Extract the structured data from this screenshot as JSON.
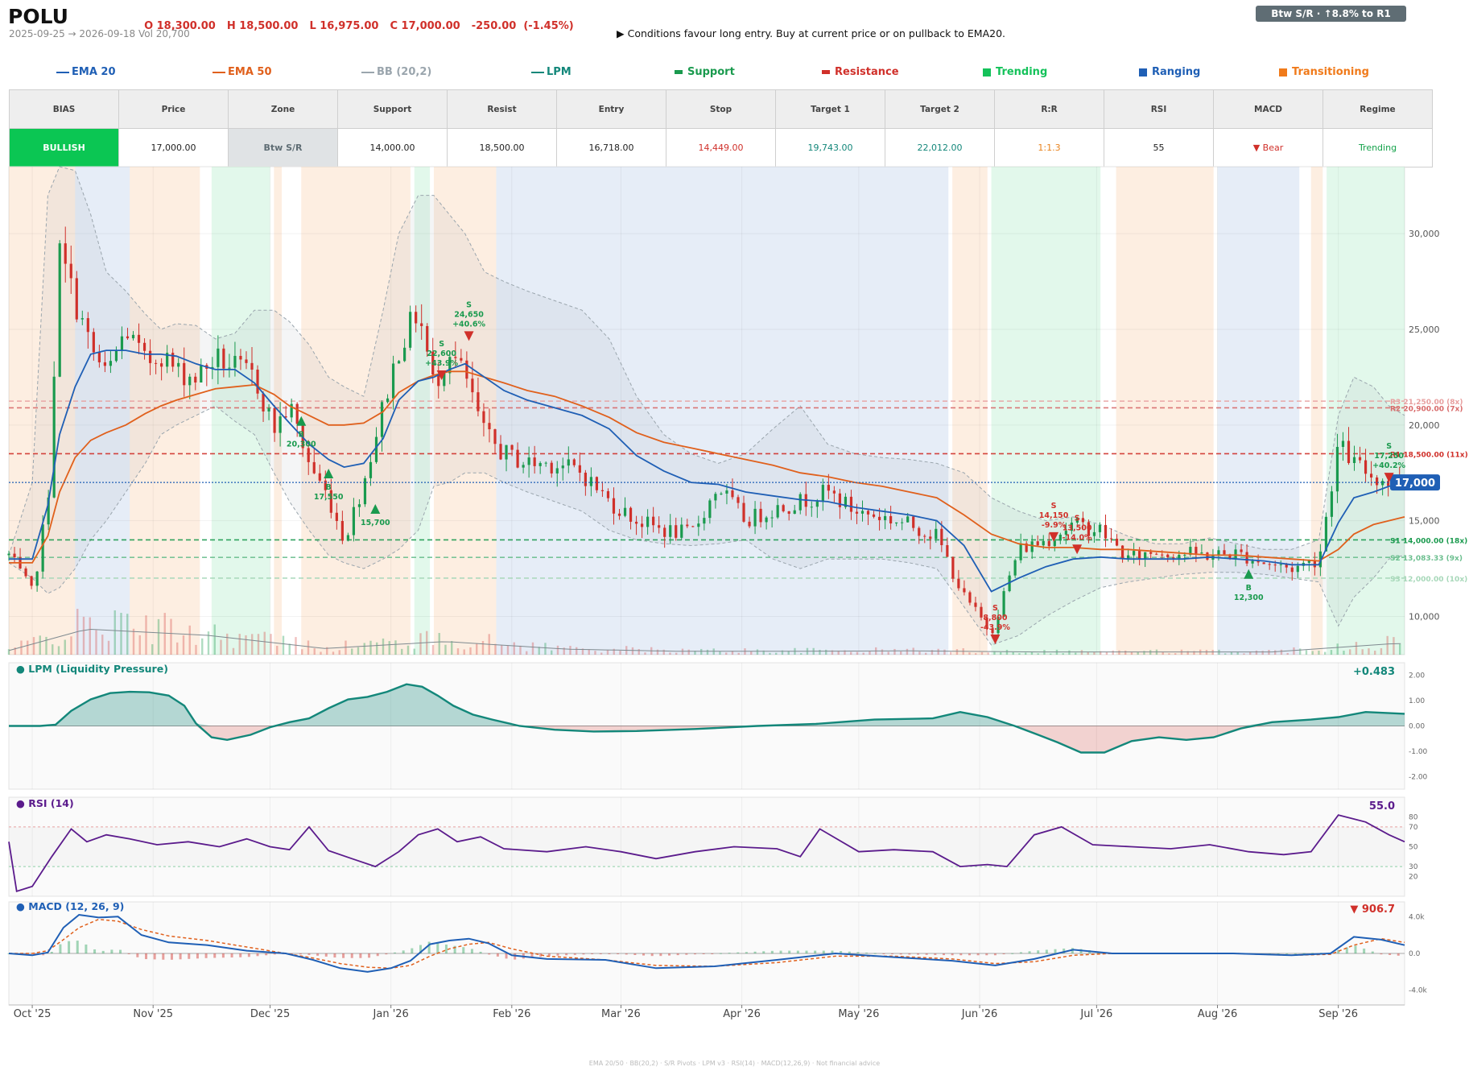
{
  "header": {
    "ticker": "POLU",
    "ohlc": [
      "O 18,300.00",
      "H 18,500.00",
      "L 16,975.00",
      "C 17,000.00",
      "-250.00  (-1.45%)"
    ],
    "date_range": "2025-09-25 → 2026-09-18   Vol 20,700",
    "advice": "▶  Conditions favour long entry. Buy at current price or on pullback to EMA20.",
    "badge": "Btw S/R  ·  ↑8.8% to R1"
  },
  "legend": [
    {
      "label": "EMA 20",
      "color": "#1f5fb5",
      "kind": "line"
    },
    {
      "label": "EMA 50",
      "color": "#e0601c",
      "kind": "line"
    },
    {
      "label": "BB (20,2)",
      "color": "#9aa5ad",
      "kind": "line"
    },
    {
      "label": "LPM",
      "color": "#13877a",
      "kind": "line"
    },
    {
      "label": "Support",
      "color": "#1a9a4e",
      "kind": "bar"
    },
    {
      "label": "Resistance",
      "color": "#d0302a",
      "kind": "bar"
    },
    {
      "label": "Trending",
      "color": "#14c25a",
      "kind": "box"
    },
    {
      "label": "Ranging",
      "color": "#1f5fb5",
      "kind": "box"
    },
    {
      "label": "Transitioning",
      "color": "#f07a1a",
      "kind": "box"
    }
  ],
  "summary": {
    "headers": [
      "BIAS",
      "Price",
      "Zone",
      "Support",
      "Resist",
      "Entry",
      "Stop",
      "Target 1",
      "Target 2",
      "R:R",
      "RSI",
      "MACD",
      "Regime"
    ],
    "values": [
      "BULLISH",
      "17,000.00",
      "Btw S/R",
      "14,000.00",
      "18,500.00",
      "16,718.00",
      "14,449.00",
      "19,743.00",
      "22,012.00",
      "1:1.3",
      "55",
      "▼ Bear",
      "Trending"
    ],
    "value_colors": [
      "#ffffff",
      "#222222",
      "#5f6d74",
      "#222222",
      "#222222",
      "#222222",
      "#d0302a",
      "#13877a",
      "#13877a",
      "#e8821c",
      "#222222",
      "#d0302a",
      "#14a24a"
    ]
  },
  "panels": {
    "lpm": {
      "title": "● LPM (Liquidity Pressure)",
      "value": "+0.483"
    },
    "rsi": {
      "title": "● RSI (14)",
      "value": "55.0"
    },
    "macd": {
      "title": "● MACD (12, 26, 9)",
      "value": "▼ 906.7"
    }
  },
  "footer": "EMA 20/50  ·  BB(20,2)  ·  S/R Pivots  ·  LPM v3  ·  RSI(14)  ·  MACD(12,26,9)  ·  Not financial advice",
  "chart_data": {
    "type": "candlestick",
    "x_range": [
      "2025-09-25",
      "2026-09-18"
    ],
    "x_tick_labels": [
      "Oct '25",
      "Nov '25",
      "Dec '25",
      "Jan '26",
      "Feb '26",
      "Mar '26",
      "Apr '26",
      "May '26",
      "Jun '26",
      "Jul '26",
      "Aug '26",
      "Sep '26"
    ],
    "price_axis": {
      "ylim": [
        8000,
        33500
      ],
      "ticks": [
        "30,000",
        "25,000",
        "20,000",
        "15,000",
        "10,000"
      ]
    },
    "current_price": {
      "value": 17000,
      "label": "17,000"
    },
    "levels": [
      {
        "label": "R3 21,250.00 (8x)",
        "value": 21250,
        "color": "#e8a0a0"
      },
      {
        "label": "R2 20,900.00 (7x)",
        "value": 20900,
        "color": "#d86a6a"
      },
      {
        "label": "R1 18,500.00 (11x)",
        "value": 18500,
        "color": "#d0302a"
      },
      {
        "label": "S1 14,000.00 (18x)",
        "value": 14000,
        "color": "#1a9a4e"
      },
      {
        "label": "S2 13,083.33 (9x)",
        "value": 13083,
        "color": "#6cbf8f"
      },
      {
        "label": "S3 12,000.00 (10x)",
        "value": 12000,
        "color": "#a7d8b9"
      }
    ],
    "regimes": [
      {
        "start": "2025-09-25",
        "end": "2025-10-12",
        "type": "Transitioning"
      },
      {
        "start": "2025-10-12",
        "end": "2025-10-26",
        "type": "Ranging"
      },
      {
        "start": "2025-10-26",
        "end": "2025-11-13",
        "type": "Transitioning"
      },
      {
        "start": "2025-11-16",
        "end": "2025-12-01",
        "type": "Trending"
      },
      {
        "start": "2025-12-02",
        "end": "2025-12-04",
        "type": "Transitioning"
      },
      {
        "start": "2025-12-09",
        "end": "2026-01-06",
        "type": "Transitioning"
      },
      {
        "start": "2026-01-07",
        "end": "2026-01-11",
        "type": "Trending"
      },
      {
        "start": "2026-01-12",
        "end": "2026-01-28",
        "type": "Transitioning"
      },
      {
        "start": "2026-01-28",
        "end": "2026-05-24",
        "type": "Ranging"
      },
      {
        "start": "2026-05-25",
        "end": "2026-06-03",
        "type": "Transitioning"
      },
      {
        "start": "2026-06-04",
        "end": "2026-07-02",
        "type": "Trending"
      },
      {
        "start": "2026-07-06",
        "end": "2026-07-31",
        "type": "Transitioning"
      },
      {
        "start": "2026-08-01",
        "end": "2026-08-22",
        "type": "Ranging"
      },
      {
        "start": "2026-08-25",
        "end": "2026-08-28",
        "type": "Transitioning"
      },
      {
        "start": "2026-08-29",
        "end": "2026-09-18",
        "type": "Trending"
      }
    ],
    "price": {
      "dates": [
        "2025-09-25",
        "2025-10-01",
        "2025-10-05",
        "2025-10-08",
        "2025-10-12",
        "2025-10-16",
        "2025-10-20",
        "2025-10-25",
        "2025-10-30",
        "2025-11-03",
        "2025-11-07",
        "2025-11-12",
        "2025-11-17",
        "2025-11-22",
        "2025-11-27",
        "2025-12-02",
        "2025-12-06",
        "2025-12-11",
        "2025-12-16",
        "2025-12-20",
        "2025-12-25",
        "2025-12-30",
        "2026-01-03",
        "2026-01-08",
        "2026-01-12",
        "2026-01-16",
        "2026-01-20",
        "2026-01-25",
        "2026-01-30",
        "2026-02-05",
        "2026-02-12",
        "2026-02-19",
        "2026-02-26",
        "2026-03-05",
        "2026-03-12",
        "2026-03-19",
        "2026-03-26",
        "2026-04-02",
        "2026-04-09",
        "2026-04-16",
        "2026-04-23",
        "2026-04-30",
        "2026-05-07",
        "2026-05-14",
        "2026-05-21",
        "2026-05-28",
        "2026-06-04",
        "2026-06-11",
        "2026-06-18",
        "2026-06-25",
        "2026-07-02",
        "2026-07-09",
        "2026-07-16",
        "2026-07-23",
        "2026-07-30",
        "2026-08-06",
        "2026-08-13",
        "2026-08-20",
        "2026-08-27",
        "2026-09-01",
        "2026-09-05",
        "2026-09-10",
        "2026-09-14",
        "2026-09-18"
      ],
      "close": [
        13200,
        11200,
        16000,
        29000,
        26500,
        24000,
        22500,
        25000,
        23200,
        23800,
        22800,
        22500,
        23500,
        23000,
        22500,
        19800,
        21000,
        18000,
        16200,
        14000,
        17000,
        21000,
        24000,
        26000,
        22000,
        24000,
        22500,
        19500,
        18500,
        18000,
        18000,
        17500,
        16000,
        15000,
        14500,
        14300,
        16800,
        15000,
        15600,
        16000,
        16500,
        15500,
        15200,
        14800,
        14200,
        11000,
        9200,
        13500,
        14000,
        14800,
        14500,
        13000,
        13400,
        13300,
        13200,
        13300,
        12800,
        12500,
        13000,
        19000,
        18000,
        17300,
        17000,
        17000
      ],
      "ema20": [
        13000,
        13000,
        15800,
        19500,
        22000,
        23700,
        23900,
        23900,
        23700,
        23700,
        23600,
        23200,
        22900,
        22900,
        22200,
        21000,
        20100,
        19000,
        18200,
        17800,
        18000,
        19300,
        21300,
        22300,
        22500,
        22900,
        23200,
        22500,
        21800,
        21300,
        20900,
        20500,
        19800,
        18400,
        17600,
        17000,
        16900,
        16500,
        16300,
        16100,
        16000,
        15700,
        15500,
        15300,
        15000,
        13700,
        11300,
        12000,
        12600,
        13000,
        13100,
        13000,
        13000,
        13000,
        13100,
        13000,
        12900,
        12700,
        12700,
        14900,
        16200,
        16500,
        16800,
        16900
      ],
      "ema50": [
        12800,
        12800,
        14200,
        16500,
        18300,
        19200,
        19600,
        20000,
        20600,
        21000,
        21300,
        21600,
        21900,
        22000,
        22100,
        21600,
        21000,
        20500,
        20000,
        20000,
        20100,
        20700,
        21700,
        22300,
        22600,
        22800,
        22800,
        22500,
        22200,
        21800,
        21500,
        21000,
        20400,
        19600,
        19100,
        18800,
        18500,
        18200,
        17900,
        17500,
        17300,
        17000,
        16800,
        16500,
        16200,
        15300,
        14300,
        13800,
        13600,
        13600,
        13500,
        13500,
        13400,
        13300,
        13200,
        13200,
        13100,
        13000,
        12900,
        13500,
        14300,
        14800,
        15000,
        15200
      ],
      "bb_upper": [
        13200,
        17000,
        32000,
        33500,
        33300,
        31000,
        28000,
        27000,
        25800,
        25000,
        25300,
        25200,
        24500,
        24800,
        26000,
        26000,
        25400,
        24200,
        22500,
        22000,
        21500,
        26000,
        30000,
        32000,
        32000,
        31000,
        30000,
        28000,
        27500,
        27000,
        26500,
        26000,
        24500,
        21500,
        19500,
        18500,
        18000,
        18500,
        19800,
        21000,
        19000,
        18500,
        18300,
        18200,
        18000,
        17500,
        16200,
        15500,
        15000,
        15200,
        14800,
        14200,
        13800,
        13800,
        14100,
        13800,
        13500,
        13500,
        14000,
        20500,
        22500,
        22000,
        21000,
        20500
      ],
      "bb_lower": [
        12800,
        12000,
        11200,
        11500,
        12500,
        14000,
        15000,
        16500,
        18000,
        19500,
        20000,
        20500,
        21000,
        20200,
        19500,
        17500,
        16000,
        14500,
        13200,
        12800,
        12500,
        13000,
        13500,
        14500,
        16800,
        17000,
        17500,
        17500,
        17000,
        16500,
        16000,
        15500,
        14500,
        14000,
        13800,
        13700,
        13800,
        14000,
        13000,
        12500,
        13000,
        13000,
        13000,
        12800,
        12500,
        10500,
        8500,
        9000,
        10000,
        10800,
        11500,
        11800,
        12000,
        12200,
        12300,
        12300,
        12200,
        12000,
        11800,
        9500,
        11000,
        12000,
        13000,
        13200
      ]
    },
    "trade_markers": [
      {
        "kind": "B",
        "label": "B\n20,300",
        "date": "2025-12-09",
        "value": 20300
      },
      {
        "kind": "B",
        "label": "B\n17,550",
        "date": "2025-12-16",
        "value": 17550
      },
      {
        "kind": "B",
        "label": "15,700",
        "date": "2025-12-28",
        "value": 15700
      },
      {
        "kind": "S",
        "label": "S\n22,600\n+43.9%",
        "date": "2026-01-14",
        "value": 22600
      },
      {
        "kind": "S",
        "label": "S\n24,650\n+40.6%",
        "date": "2026-01-21",
        "value": 24650
      },
      {
        "kind": "S",
        "label": "S\n8,800\n-43.9%",
        "date": "2026-06-05",
        "value": 8800
      },
      {
        "kind": "S",
        "label": "S\n14,150\n-9.9%",
        "date": "2026-06-20",
        "value": 14150
      },
      {
        "kind": "S",
        "label": "S\n13,500\n-14.0%",
        "date": "2026-06-26",
        "value": 13500
      },
      {
        "kind": "B",
        "label": "B\n12,300",
        "date": "2026-08-09",
        "value": 12300
      },
      {
        "kind": "S",
        "label": "S\n17,250\n+40.2%",
        "date": "2026-09-14",
        "value": 17250
      }
    ],
    "volume": {
      "dates": [
        "2025-09-25",
        "2025-10-15",
        "2025-11-15",
        "2025-12-15",
        "2026-01-15",
        "2026-02-15",
        "2026-03-15",
        "2026-04-15",
        "2026-05-15",
        "2026-06-15",
        "2026-07-15",
        "2026-08-15",
        "2026-09-15"
      ],
      "avg": [
        600,
        3700,
        2800,
        900,
        1900,
        800,
        500,
        500,
        550,
        400,
        400,
        400,
        1600
      ]
    },
    "lpm": {
      "ylim": [
        -2.5,
        2.5
      ],
      "ticks": [
        "2.00",
        "1.00",
        "0.00",
        "-1.00",
        "-2.00"
      ],
      "dates": [
        "2025-09-25",
        "2025-10-03",
        "2025-10-07",
        "2025-10-11",
        "2025-10-16",
        "2025-10-21",
        "2025-10-26",
        "2025-10-31",
        "2025-11-05",
        "2025-11-09",
        "2025-11-12",
        "2025-11-16",
        "2025-11-20",
        "2025-11-26",
        "2025-12-01",
        "2025-12-06",
        "2025-12-11",
        "2025-12-16",
        "2025-12-21",
        "2025-12-26",
        "2025-12-31",
        "2026-01-05",
        "2026-01-09",
        "2026-01-13",
        "2026-01-17",
        "2026-01-22",
        "2026-01-27",
        "2026-02-03",
        "2026-02-12",
        "2026-02-22",
        "2026-03-05",
        "2026-03-20",
        "2026-04-05",
        "2026-04-20",
        "2026-05-05",
        "2026-05-20",
        "2026-05-27",
        "2026-06-03",
        "2026-06-10",
        "2026-06-16",
        "2026-06-21",
        "2026-06-27",
        "2026-07-03",
        "2026-07-10",
        "2026-07-17",
        "2026-07-24",
        "2026-07-31",
        "2026-08-07",
        "2026-08-15",
        "2026-08-25",
        "2026-09-01",
        "2026-09-08",
        "2026-09-18"
      ],
      "values": [
        0.0,
        0.0,
        0.05,
        0.6,
        1.05,
        1.3,
        1.35,
        1.33,
        1.2,
        0.8,
        0.1,
        -0.45,
        -0.55,
        -0.35,
        -0.05,
        0.15,
        0.3,
        0.7,
        1.05,
        1.15,
        1.35,
        1.65,
        1.55,
        1.2,
        0.8,
        0.45,
        0.25,
        0.0,
        -0.15,
        -0.22,
        -0.2,
        -0.12,
        0.0,
        0.08,
        0.25,
        0.3,
        0.55,
        0.35,
        0.0,
        -0.35,
        -0.65,
        -1.05,
        -1.05,
        -0.6,
        -0.45,
        -0.55,
        -0.45,
        -0.1,
        0.15,
        0.25,
        0.35,
        0.55,
        0.48
      ]
    },
    "rsi": {
      "ylim": [
        0,
        100
      ],
      "ticks": [
        "80",
        "70",
        "50",
        "30",
        "20"
      ],
      "overbought": 70,
      "oversold": 30,
      "dates": [
        "2025-09-25",
        "2025-09-27",
        "2025-10-01",
        "2025-10-06",
        "2025-10-11",
        "2025-10-15",
        "2025-10-20",
        "2025-10-26",
        "2025-11-02",
        "2025-11-10",
        "2025-11-18",
        "2025-11-25",
        "2025-12-01",
        "2025-12-06",
        "2025-12-11",
        "2025-12-16",
        "2025-12-22",
        "2025-12-28",
        "2026-01-03",
        "2026-01-08",
        "2026-01-13",
        "2026-01-18",
        "2026-01-24",
        "2026-01-30",
        "2026-02-10",
        "2026-02-20",
        "2026-03-01",
        "2026-03-10",
        "2026-03-20",
        "2026-03-30",
        "2026-04-10",
        "2026-04-16",
        "2026-04-21",
        "2026-05-01",
        "2026-05-10",
        "2026-05-20",
        "2026-05-27",
        "2026-06-03",
        "2026-06-08",
        "2026-06-15",
        "2026-06-22",
        "2026-06-30",
        "2026-07-10",
        "2026-07-20",
        "2026-07-30",
        "2026-08-09",
        "2026-08-18",
        "2026-08-25",
        "2026-09-01",
        "2026-09-08",
        "2026-09-14",
        "2026-09-18"
      ],
      "values": [
        55,
        5,
        10,
        40,
        68,
        55,
        62,
        58,
        52,
        55,
        50,
        58,
        50,
        47,
        70,
        46,
        38,
        30,
        45,
        62,
        68,
        55,
        60,
        48,
        45,
        50,
        45,
        38,
        45,
        50,
        48,
        40,
        68,
        45,
        47,
        45,
        30,
        32,
        30,
        62,
        70,
        52,
        50,
        48,
        52,
        45,
        42,
        45,
        82,
        75,
        62,
        55
      ]
    },
    "macd": {
      "ylim": [
        -5600,
        5600
      ],
      "ticks": [
        "4.0k",
        "0.0",
        "-4.0k"
      ],
      "dates": [
        "2025-09-25",
        "2025-10-01",
        "2025-10-05",
        "2025-10-09",
        "2025-10-13",
        "2025-10-18",
        "2025-10-23",
        "2025-10-29",
        "2025-11-05",
        "2025-11-15",
        "2025-11-25",
        "2025-12-05",
        "2025-12-12",
        "2025-12-19",
        "2025-12-26",
        "2026-01-01",
        "2026-01-06",
        "2026-01-11",
        "2026-01-16",
        "2026-01-21",
        "2026-01-26",
        "2026-02-01",
        "2026-02-10",
        "2026-02-25",
        "2026-03-10",
        "2026-03-25",
        "2026-04-10",
        "2026-04-25",
        "2026-05-10",
        "2026-05-25",
        "2026-06-05",
        "2026-06-15",
        "2026-06-25",
        "2026-07-05",
        "2026-07-20",
        "2026-08-05",
        "2026-08-20",
        "2026-08-30",
        "2026-09-05",
        "2026-09-12",
        "2026-09-18"
      ],
      "macd_values": [
        0,
        -200,
        100,
        2800,
        4200,
        3900,
        4000,
        2000,
        1200,
        900,
        300,
        0,
        -700,
        -1600,
        -2000,
        -1600,
        -800,
        1000,
        1400,
        1600,
        1100,
        -200,
        -600,
        -700,
        -1600,
        -1400,
        -700,
        0,
        -400,
        -800,
        -1300,
        -600,
        400,
        0,
        0,
        0,
        -200,
        0,
        1800,
        1500,
        900
      ],
      "signal_values": [
        0,
        0,
        300,
        1500,
        2800,
        3700,
        3500,
        2600,
        1900,
        1400,
        700,
        0,
        -500,
        -1100,
        -1500,
        -1600,
        -1300,
        -300,
        500,
        1000,
        1200,
        500,
        -300,
        -700,
        -1300,
        -1400,
        -1000,
        -300,
        -300,
        -600,
        -1100,
        -900,
        -200,
        0,
        0,
        0,
        -200,
        -100,
        900,
        1600,
        1200
      ]
    }
  }
}
